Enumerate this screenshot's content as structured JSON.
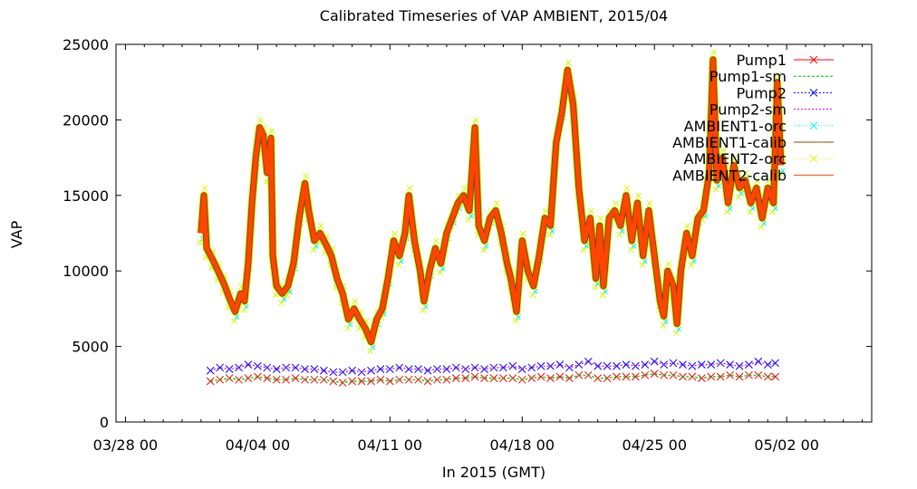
{
  "chart_data": {
    "type": "line",
    "title": "Calibrated Timeseries of VAP AMBIENT, 2015/04",
    "xlabel": "In 2015 (GMT)",
    "ylabel": "VAP",
    "ylim": [
      0,
      25000
    ],
    "xlim_days": [
      -4.5,
      35.5
    ],
    "x_ticks": [
      {
        "label": "03/28 00",
        "day": -4
      },
      {
        "label": "04/04 00",
        "day": 3
      },
      {
        "label": "04/11 00",
        "day": 10
      },
      {
        "label": "04/18 00",
        "day": 17
      },
      {
        "label": "04/25 00",
        "day": 24
      },
      {
        "label": "05/02 00",
        "day": 31
      }
    ],
    "y_ticks": [
      0,
      5000,
      10000,
      15000,
      20000,
      25000
    ],
    "legend_position": "top-right",
    "series": [
      {
        "name": "Pump1",
        "color": "#ff0000",
        "marker": "x"
      },
      {
        "name": "Pump1-sm",
        "color": "#00c000",
        "marker": "none"
      },
      {
        "name": "Pump2",
        "color": "#0000ff",
        "marker": "x"
      },
      {
        "name": "Pump2-sm",
        "color": "#c000ff",
        "marker": "none"
      },
      {
        "name": "AMBIENT1-orc",
        "color": "#00eeee",
        "marker": "x"
      },
      {
        "name": "AMBIENT1-calib",
        "color": "#8b4513",
        "marker": "none"
      },
      {
        "name": "AMBIENT2-orc",
        "color": "#ccff00",
        "marker": "x"
      },
      {
        "name": "AMBIENT2-calib",
        "color": "#ff4500",
        "marker": "none"
      }
    ],
    "ambient_points": [
      {
        "x": 0.0,
        "y": 12500
      },
      {
        "x": 0.15,
        "y": 15000
      },
      {
        "x": 0.3,
        "y": 11500
      },
      {
        "x": 0.6,
        "y": 10800
      },
      {
        "x": 0.9,
        "y": 10000
      },
      {
        "x": 1.2,
        "y": 9200
      },
      {
        "x": 1.5,
        "y": 8200
      },
      {
        "x": 1.8,
        "y": 7300
      },
      {
        "x": 2.1,
        "y": 8500
      },
      {
        "x": 2.3,
        "y": 8000
      },
      {
        "x": 2.5,
        "y": 10500
      },
      {
        "x": 2.7,
        "y": 14500
      },
      {
        "x": 2.9,
        "y": 17500
      },
      {
        "x": 3.1,
        "y": 19500
      },
      {
        "x": 3.3,
        "y": 19000
      },
      {
        "x": 3.5,
        "y": 16500
      },
      {
        "x": 3.7,
        "y": 18800
      },
      {
        "x": 3.8,
        "y": 11000
      },
      {
        "x": 4.0,
        "y": 9000
      },
      {
        "x": 4.3,
        "y": 8500
      },
      {
        "x": 4.6,
        "y": 9000
      },
      {
        "x": 4.9,
        "y": 10500
      },
      {
        "x": 5.2,
        "y": 13500
      },
      {
        "x": 5.5,
        "y": 15800
      },
      {
        "x": 5.7,
        "y": 14000
      },
      {
        "x": 6.0,
        "y": 12000
      },
      {
        "x": 6.3,
        "y": 12500
      },
      {
        "x": 6.6,
        "y": 11800
      },
      {
        "x": 6.9,
        "y": 11000
      },
      {
        "x": 7.2,
        "y": 9500
      },
      {
        "x": 7.5,
        "y": 8500
      },
      {
        "x": 7.8,
        "y": 6800
      },
      {
        "x": 8.1,
        "y": 7500
      },
      {
        "x": 8.4,
        "y": 6800
      },
      {
        "x": 8.7,
        "y": 6200
      },
      {
        "x": 9.0,
        "y": 5300
      },
      {
        "x": 9.3,
        "y": 6800
      },
      {
        "x": 9.6,
        "y": 7500
      },
      {
        "x": 9.9,
        "y": 9500
      },
      {
        "x": 10.2,
        "y": 12000
      },
      {
        "x": 10.5,
        "y": 11000
      },
      {
        "x": 10.8,
        "y": 12500
      },
      {
        "x": 11.0,
        "y": 15000
      },
      {
        "x": 11.3,
        "y": 12000
      },
      {
        "x": 11.6,
        "y": 10000
      },
      {
        "x": 11.8,
        "y": 8000
      },
      {
        "x": 12.1,
        "y": 10000
      },
      {
        "x": 12.4,
        "y": 11500
      },
      {
        "x": 12.7,
        "y": 10500
      },
      {
        "x": 13.0,
        "y": 12500
      },
      {
        "x": 13.3,
        "y": 13500
      },
      {
        "x": 13.6,
        "y": 14500
      },
      {
        "x": 13.9,
        "y": 15000
      },
      {
        "x": 14.2,
        "y": 14000
      },
      {
        "x": 14.5,
        "y": 19500
      },
      {
        "x": 14.7,
        "y": 13000
      },
      {
        "x": 15.0,
        "y": 12000
      },
      {
        "x": 15.3,
        "y": 13500
      },
      {
        "x": 15.6,
        "y": 14000
      },
      {
        "x": 15.9,
        "y": 12500
      },
      {
        "x": 16.2,
        "y": 10500
      },
      {
        "x": 16.4,
        "y": 9500
      },
      {
        "x": 16.7,
        "y": 7300
      },
      {
        "x": 17.0,
        "y": 12000
      },
      {
        "x": 17.3,
        "y": 10000
      },
      {
        "x": 17.6,
        "y": 9000
      },
      {
        "x": 17.9,
        "y": 11000
      },
      {
        "x": 18.2,
        "y": 13500
      },
      {
        "x": 18.5,
        "y": 13000
      },
      {
        "x": 18.8,
        "y": 18500
      },
      {
        "x": 19.1,
        "y": 20500
      },
      {
        "x": 19.4,
        "y": 23300
      },
      {
        "x": 19.7,
        "y": 21000
      },
      {
        "x": 20.0,
        "y": 15500
      },
      {
        "x": 20.3,
        "y": 12000
      },
      {
        "x": 20.6,
        "y": 13500
      },
      {
        "x": 20.9,
        "y": 9500
      },
      {
        "x": 21.1,
        "y": 13000
      },
      {
        "x": 21.3,
        "y": 9000
      },
      {
        "x": 21.6,
        "y": 13500
      },
      {
        "x": 21.9,
        "y": 14000
      },
      {
        "x": 22.2,
        "y": 13000
      },
      {
        "x": 22.5,
        "y": 15000
      },
      {
        "x": 22.8,
        "y": 12000
      },
      {
        "x": 23.1,
        "y": 14500
      },
      {
        "x": 23.4,
        "y": 11000
      },
      {
        "x": 23.7,
        "y": 14000
      },
      {
        "x": 24.0,
        "y": 11000
      },
      {
        "x": 24.3,
        "y": 8000
      },
      {
        "x": 24.5,
        "y": 7000
      },
      {
        "x": 24.7,
        "y": 10000
      },
      {
        "x": 25.0,
        "y": 9000
      },
      {
        "x": 25.2,
        "y": 6500
      },
      {
        "x": 25.4,
        "y": 10000
      },
      {
        "x": 25.7,
        "y": 12500
      },
      {
        "x": 26.0,
        "y": 11000
      },
      {
        "x": 26.3,
        "y": 13500
      },
      {
        "x": 26.6,
        "y": 14000
      },
      {
        "x": 26.9,
        "y": 16500
      },
      {
        "x": 27.1,
        "y": 24000
      },
      {
        "x": 27.3,
        "y": 16000
      },
      {
        "x": 27.6,
        "y": 17500
      },
      {
        "x": 27.9,
        "y": 14500
      },
      {
        "x": 28.2,
        "y": 17000
      },
      {
        "x": 28.5,
        "y": 15500
      },
      {
        "x": 28.8,
        "y": 16000
      },
      {
        "x": 29.1,
        "y": 14500
      },
      {
        "x": 29.4,
        "y": 15500
      },
      {
        "x": 29.7,
        "y": 13500
      },
      {
        "x": 30.0,
        "y": 15500
      },
      {
        "x": 30.3,
        "y": 14500
      },
      {
        "x": 30.5,
        "y": 22500
      },
      {
        "x": 30.7,
        "y": 17000
      }
    ],
    "pump2_points": [
      {
        "x": 0.5,
        "y": 3400
      },
      {
        "x": 1.0,
        "y": 3600
      },
      {
        "x": 1.5,
        "y": 3500
      },
      {
        "x": 2.0,
        "y": 3600
      },
      {
        "x": 2.5,
        "y": 3800
      },
      {
        "x": 3.0,
        "y": 3700
      },
      {
        "x": 3.5,
        "y": 3600
      },
      {
        "x": 4.0,
        "y": 3500
      },
      {
        "x": 4.5,
        "y": 3600
      },
      {
        "x": 5.0,
        "y": 3600
      },
      {
        "x": 5.5,
        "y": 3500
      },
      {
        "x": 6.0,
        "y": 3500
      },
      {
        "x": 6.5,
        "y": 3400
      },
      {
        "x": 7.0,
        "y": 3300
      },
      {
        "x": 7.5,
        "y": 3300
      },
      {
        "x": 8.0,
        "y": 3400
      },
      {
        "x": 8.5,
        "y": 3300
      },
      {
        "x": 9.0,
        "y": 3400
      },
      {
        "x": 9.5,
        "y": 3500
      },
      {
        "x": 10.0,
        "y": 3500
      },
      {
        "x": 10.5,
        "y": 3600
      },
      {
        "x": 11.0,
        "y": 3500
      },
      {
        "x": 11.5,
        "y": 3500
      },
      {
        "x": 12.0,
        "y": 3400
      },
      {
        "x": 12.5,
        "y": 3500
      },
      {
        "x": 13.0,
        "y": 3500
      },
      {
        "x": 13.5,
        "y": 3600
      },
      {
        "x": 14.0,
        "y": 3500
      },
      {
        "x": 14.5,
        "y": 3600
      },
      {
        "x": 15.0,
        "y": 3500
      },
      {
        "x": 15.5,
        "y": 3600
      },
      {
        "x": 16.0,
        "y": 3600
      },
      {
        "x": 16.5,
        "y": 3700
      },
      {
        "x": 17.0,
        "y": 3500
      },
      {
        "x": 17.5,
        "y": 3600
      },
      {
        "x": 18.0,
        "y": 3700
      },
      {
        "x": 18.5,
        "y": 3700
      },
      {
        "x": 19.0,
        "y": 3800
      },
      {
        "x": 19.5,
        "y": 3600
      },
      {
        "x": 20.0,
        "y": 3800
      },
      {
        "x": 20.5,
        "y": 4000
      },
      {
        "x": 21.0,
        "y": 3700
      },
      {
        "x": 21.5,
        "y": 3700
      },
      {
        "x": 22.0,
        "y": 3700
      },
      {
        "x": 22.5,
        "y": 3800
      },
      {
        "x": 23.0,
        "y": 3700
      },
      {
        "x": 23.5,
        "y": 3800
      },
      {
        "x": 24.0,
        "y": 4000
      },
      {
        "x": 24.5,
        "y": 3800
      },
      {
        "x": 25.0,
        "y": 3900
      },
      {
        "x": 25.5,
        "y": 3800
      },
      {
        "x": 26.0,
        "y": 3700
      },
      {
        "x": 26.5,
        "y": 3800
      },
      {
        "x": 27.0,
        "y": 3800
      },
      {
        "x": 27.5,
        "y": 3900
      },
      {
        "x": 28.0,
        "y": 3800
      },
      {
        "x": 28.5,
        "y": 3700
      },
      {
        "x": 29.0,
        "y": 3800
      },
      {
        "x": 29.5,
        "y": 4000
      },
      {
        "x": 30.0,
        "y": 3800
      },
      {
        "x": 30.4,
        "y": 3900
      }
    ],
    "pump1_points": [
      {
        "x": 0.5,
        "y": 2700
      },
      {
        "x": 1.0,
        "y": 2800
      },
      {
        "x": 1.5,
        "y": 2900
      },
      {
        "x": 2.0,
        "y": 2800
      },
      {
        "x": 2.5,
        "y": 2900
      },
      {
        "x": 3.0,
        "y": 3000
      },
      {
        "x": 3.5,
        "y": 2900
      },
      {
        "x": 4.0,
        "y": 2800
      },
      {
        "x": 4.5,
        "y": 2800
      },
      {
        "x": 5.0,
        "y": 2900
      },
      {
        "x": 5.5,
        "y": 2800
      },
      {
        "x": 6.0,
        "y": 2800
      },
      {
        "x": 6.5,
        "y": 2800
      },
      {
        "x": 7.0,
        "y": 2700
      },
      {
        "x": 7.5,
        "y": 2600
      },
      {
        "x": 8.0,
        "y": 2700
      },
      {
        "x": 8.5,
        "y": 2700
      },
      {
        "x": 9.0,
        "y": 2700
      },
      {
        "x": 9.5,
        "y": 2800
      },
      {
        "x": 10.0,
        "y": 2700
      },
      {
        "x": 10.5,
        "y": 2800
      },
      {
        "x": 11.0,
        "y": 2800
      },
      {
        "x": 11.5,
        "y": 2800
      },
      {
        "x": 12.0,
        "y": 2700
      },
      {
        "x": 12.5,
        "y": 2800
      },
      {
        "x": 13.0,
        "y": 2800
      },
      {
        "x": 13.5,
        "y": 2900
      },
      {
        "x": 14.0,
        "y": 2900
      },
      {
        "x": 14.5,
        "y": 3000
      },
      {
        "x": 15.0,
        "y": 2900
      },
      {
        "x": 15.5,
        "y": 2900
      },
      {
        "x": 16.0,
        "y": 2900
      },
      {
        "x": 16.5,
        "y": 2900
      },
      {
        "x": 17.0,
        "y": 2800
      },
      {
        "x": 17.5,
        "y": 2900
      },
      {
        "x": 18.0,
        "y": 3000
      },
      {
        "x": 18.5,
        "y": 2900
      },
      {
        "x": 19.0,
        "y": 3000
      },
      {
        "x": 19.5,
        "y": 2900
      },
      {
        "x": 20.0,
        "y": 3100
      },
      {
        "x": 20.5,
        "y": 3100
      },
      {
        "x": 21.0,
        "y": 2900
      },
      {
        "x": 21.5,
        "y": 2900
      },
      {
        "x": 22.0,
        "y": 3000
      },
      {
        "x": 22.5,
        "y": 3000
      },
      {
        "x": 23.0,
        "y": 3000
      },
      {
        "x": 23.5,
        "y": 3100
      },
      {
        "x": 24.0,
        "y": 3200
      },
      {
        "x": 24.5,
        "y": 3100
      },
      {
        "x": 25.0,
        "y": 3100
      },
      {
        "x": 25.5,
        "y": 3000
      },
      {
        "x": 26.0,
        "y": 3000
      },
      {
        "x": 26.5,
        "y": 2900
      },
      {
        "x": 27.0,
        "y": 3000
      },
      {
        "x": 27.5,
        "y": 3000
      },
      {
        "x": 28.0,
        "y": 3100
      },
      {
        "x": 28.5,
        "y": 3000
      },
      {
        "x": 29.0,
        "y": 3100
      },
      {
        "x": 29.5,
        "y": 3100
      },
      {
        "x": 30.0,
        "y": 3000
      },
      {
        "x": 30.4,
        "y": 3000
      }
    ]
  }
}
